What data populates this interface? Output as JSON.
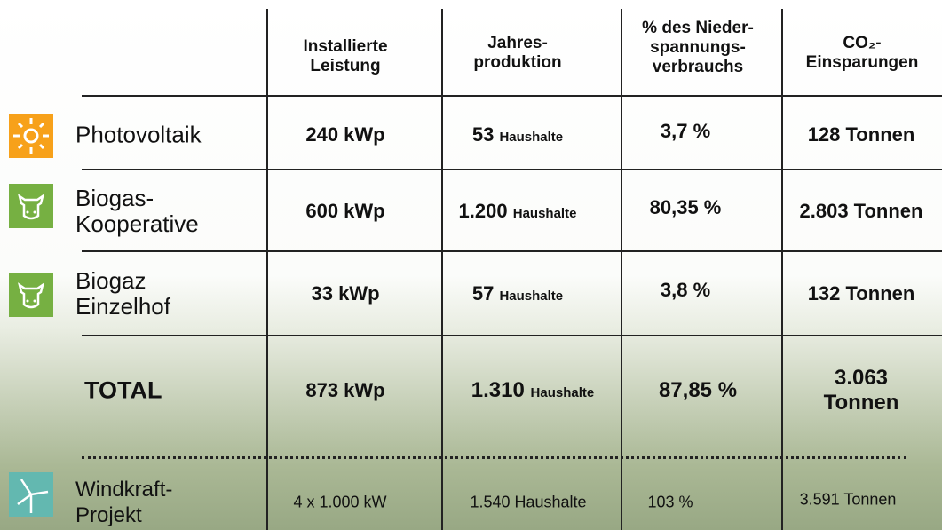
{
  "header": {
    "columns": [
      [
        "Installierte",
        "Leistung"
      ],
      [
        "Jahres-",
        "produktion"
      ],
      [
        "% des Nieder-",
        "spannungs-",
        "verbrauchs"
      ],
      [
        "CO₂-",
        "Einsparungen"
      ]
    ]
  },
  "rows": [
    {
      "name": [
        "Photovoltaik"
      ],
      "power": "240 kWp",
      "households": "53",
      "unit": "Haushalte",
      "share": "3,7 %",
      "co2": [
        "128 Tonnen"
      ]
    },
    {
      "name": [
        "Biogas-",
        "Kooperative"
      ],
      "power": "600 kWp",
      "households": "1.200",
      "unit": "Haushalte",
      "share": "80,35 %",
      "co2": [
        "2.803 Tonnen"
      ]
    },
    {
      "name": [
        "Biogaz",
        "Einzelhof"
      ],
      "power": "33 kWp",
      "households": "57",
      "unit": "Haushalte",
      "share": "3,8 %",
      "co2": [
        "132 Tonnen"
      ]
    }
  ],
  "total": {
    "name": "TOTAL",
    "power": "873 kWp",
    "households": "1.310",
    "unit": "Haushalte",
    "share": "87,85 %",
    "co2": [
      "3.063",
      "Tonnen"
    ]
  },
  "project": {
    "name": [
      "Windkraft-",
      "Projekt"
    ],
    "power": "4 x 1.000 kW",
    "production": "1.540 Haushalte",
    "share": "103 %",
    "co2": "3.591 Tonnen"
  }
}
